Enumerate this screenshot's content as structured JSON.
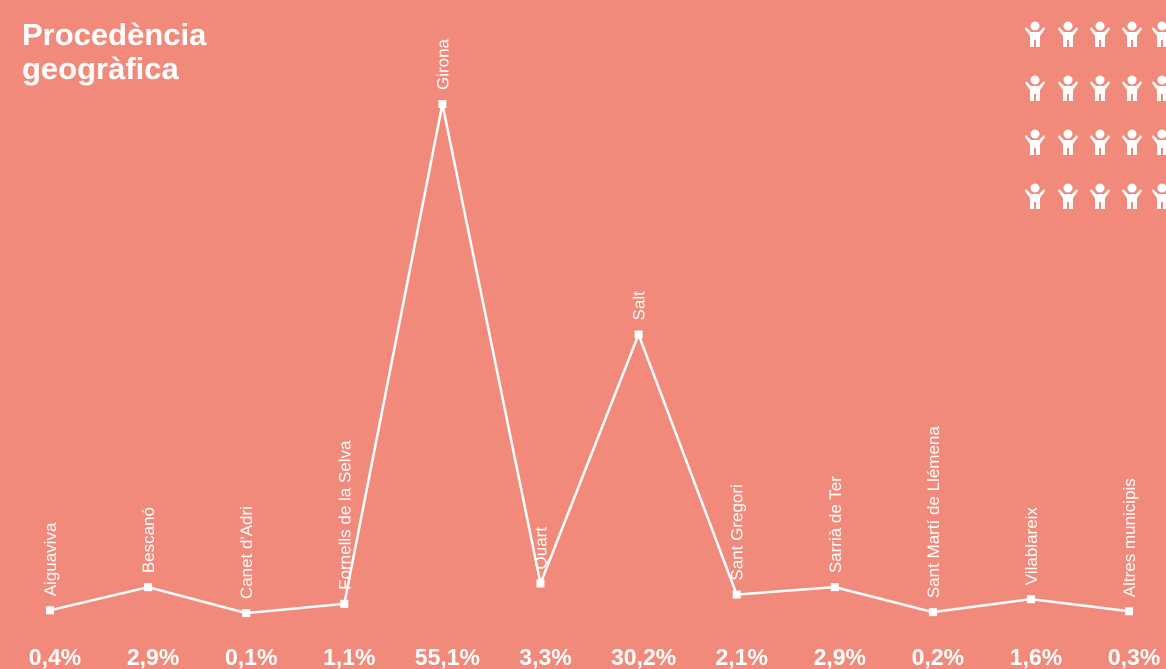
{
  "chart_data": {
    "type": "line",
    "title": "Procedència geogràfica",
    "categories": [
      "Aiguaviva",
      "Bescanó",
      "Canet d'Adri",
      "Fornells de la Selva",
      "Girona",
      "Quart",
      "Salt",
      "Sant Gregori",
      "Sarrià de Ter",
      "Sant Martí de Llémena",
      "Vilablareix",
      "Altres municipis"
    ],
    "values": [
      0.4,
      2.9,
      0.1,
      1.1,
      55.1,
      3.3,
      30.2,
      2.1,
      2.9,
      0.2,
      1.6,
      0.3
    ],
    "value_labels": [
      "0,4%",
      "2,9%",
      "0,1%",
      "1,1%",
      "55,1%",
      "3,3%",
      "30,2%",
      "2,1%",
      "2,9%",
      "0,2%",
      "1,6%",
      "0,3%"
    ],
    "color": "#ffffff"
  }
}
